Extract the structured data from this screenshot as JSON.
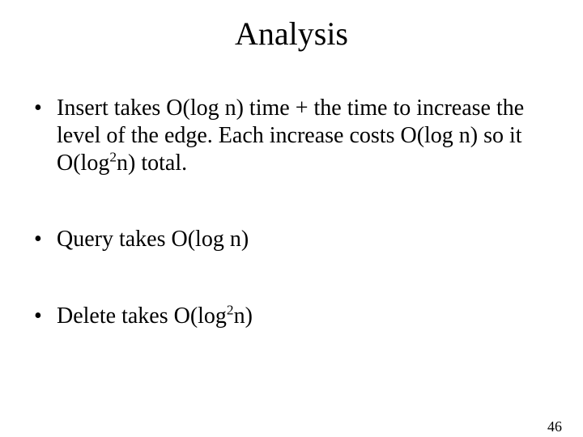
{
  "title": "Analysis",
  "bullets": {
    "b1": {
      "t1": "Insert takes O(log n) time + the time to increase the level of the edge. Each increase costs O(log n) so it O(log",
      "sup": "2",
      "t2": "n) total."
    },
    "b2": {
      "t1": "Query takes O(log n)"
    },
    "b3": {
      "t1": "Delete takes O(log",
      "sup": "2",
      "t2": "n)"
    }
  },
  "page_number": "46",
  "styling": {
    "background_color": "#ffffff",
    "text_color": "#000000",
    "font_family": "Times New Roman",
    "title_fontsize": 40,
    "body_fontsize": 28,
    "pagenum_fontsize": 18,
    "slide_width": 720,
    "slide_height": 540
  }
}
